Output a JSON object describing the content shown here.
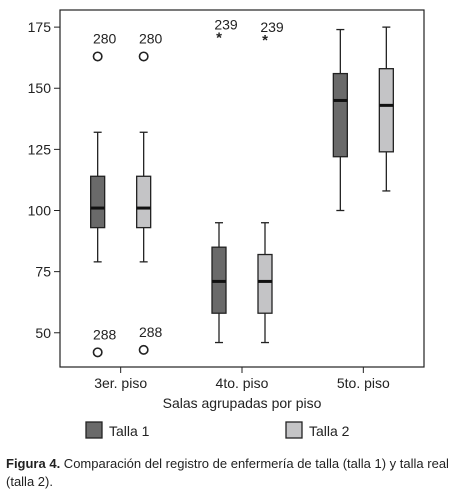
{
  "chart_data": {
    "type": "boxplot",
    "xlabel": "Salas agrupadas por piso",
    "ylabel": "",
    "ylim": [
      36,
      182
    ],
    "yticks": [
      50,
      75,
      100,
      125,
      150,
      175
    ],
    "categories": [
      "3er. piso",
      "4to. piso",
      "5to. piso"
    ],
    "series": [
      {
        "name": "Talla 1",
        "color": "#6a6a6a",
        "boxes": [
          {
            "whisker_low": 79,
            "q1": 93,
            "median": 101,
            "q3": 114,
            "whisker_high": 132
          },
          {
            "whisker_low": 46,
            "q1": 58,
            "median": 71,
            "q3": 85,
            "whisker_high": 95
          },
          {
            "whisker_low": 100,
            "q1": 122,
            "median": 145,
            "q3": 156,
            "whisker_high": 174
          }
        ]
      },
      {
        "name": "Talla 2",
        "color": "#c4c4c6",
        "boxes": [
          {
            "whisker_low": 79,
            "q1": 93,
            "median": 101,
            "q3": 114,
            "whisker_high": 132
          },
          {
            "whisker_low": 46,
            "q1": 58,
            "median": 71,
            "q3": 82,
            "whisker_high": 95
          },
          {
            "whisker_low": 108,
            "q1": 124,
            "median": 143,
            "q3": 158,
            "whisker_high": 175
          }
        ]
      }
    ],
    "outliers": [
      {
        "category": 0,
        "series": 0,
        "value": 163,
        "label": "280",
        "marker": "circle"
      },
      {
        "category": 0,
        "series": 1,
        "value": 163,
        "label": "280",
        "marker": "circle"
      },
      {
        "category": 0,
        "series": 0,
        "value": 42,
        "label": "288",
        "marker": "circle"
      },
      {
        "category": 0,
        "series": 1,
        "value": 43,
        "label": "288",
        "marker": "circle"
      },
      {
        "category": 1,
        "series": 0,
        "value": 172,
        "label": "239",
        "marker": "*"
      },
      {
        "category": 1,
        "series": 1,
        "value": 171,
        "label": "239",
        "marker": "*"
      }
    ],
    "legend_position": "bottom",
    "grid": false
  },
  "caption": {
    "figure_label": "Figura 4.",
    "text": " Comparación del registro de enfermería de talla (talla 1) y talla real (talla 2)."
  }
}
